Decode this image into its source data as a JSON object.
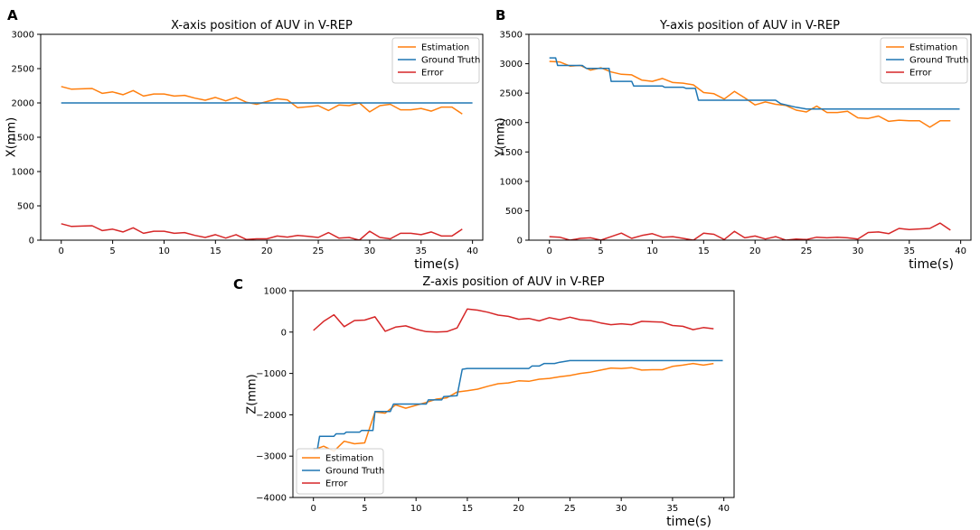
{
  "chart_data": [
    {
      "type": "line",
      "panel_label": "A",
      "title": "X-axis position of AUV in V-REP",
      "xlabel": "time(s)",
      "ylabel": "X(mm)",
      "xlim": [
        -2,
        41
      ],
      "ylim": [
        0,
        3000
      ],
      "xticks": [
        0,
        5,
        10,
        15,
        20,
        25,
        30,
        35,
        40
      ],
      "yticks": [
        0,
        500,
        1000,
        1500,
        2000,
        2500,
        3000
      ],
      "legend_position": "top-right",
      "series": [
        {
          "name": "Estimation",
          "color": "#ff7f0e",
          "x": [
            0,
            1,
            2,
            3,
            4,
            5,
            6,
            7,
            8,
            9,
            10,
            11,
            12,
            13,
            14,
            15,
            16,
            17,
            18,
            19,
            20,
            21,
            22,
            23,
            24,
            25,
            26,
            27,
            28,
            29,
            30,
            31,
            32,
            33,
            34,
            35,
            36,
            37,
            38,
            39
          ],
          "values": [
            2240,
            2200,
            2205,
            2210,
            2140,
            2160,
            2120,
            2180,
            2100,
            2130,
            2130,
            2100,
            2110,
            2070,
            2040,
            2080,
            2030,
            2080,
            2010,
            1980,
            2020,
            2060,
            2045,
            1930,
            1945,
            1960,
            1890,
            1970,
            1960,
            2000,
            1870,
            1960,
            1980,
            1900,
            1900,
            1920,
            1880,
            1940,
            1940,
            1840
          ]
        },
        {
          "name": "Ground Truth",
          "color": "#1f77b4",
          "x": [
            0,
            40
          ],
          "values": [
            2000,
            2000
          ]
        },
        {
          "name": "Error",
          "color": "#d62728",
          "x": [
            0,
            1,
            2,
            3,
            4,
            5,
            6,
            7,
            8,
            9,
            10,
            11,
            12,
            13,
            14,
            15,
            16,
            17,
            18,
            19,
            20,
            21,
            22,
            23,
            24,
            25,
            26,
            27,
            28,
            29,
            30,
            31,
            32,
            33,
            34,
            35,
            36,
            37,
            38,
            39
          ],
          "values": [
            240,
            200,
            205,
            210,
            140,
            160,
            120,
            180,
            100,
            130,
            130,
            100,
            110,
            70,
            40,
            80,
            30,
            80,
            10,
            20,
            20,
            60,
            45,
            70,
            55,
            40,
            110,
            30,
            40,
            0,
            130,
            40,
            20,
            100,
            100,
            80,
            120,
            60,
            60,
            160
          ]
        }
      ]
    },
    {
      "type": "line",
      "panel_label": "B",
      "title": "Y-axis position of AUV in V-REP",
      "xlabel": "time(s)",
      "ylabel": "Y(mm)",
      "xlim": [
        -2,
        41
      ],
      "ylim": [
        0,
        3500
      ],
      "xticks": [
        0,
        5,
        10,
        15,
        20,
        25,
        30,
        35,
        40
      ],
      "yticks": [
        0,
        500,
        1000,
        1500,
        2000,
        2500,
        3000,
        3500
      ],
      "legend_position": "top-right",
      "series": [
        {
          "name": "Estimation",
          "color": "#ff7f0e",
          "x": [
            0,
            1,
            2,
            3,
            4,
            5,
            6,
            7,
            8,
            9,
            10,
            11,
            12,
            13,
            14,
            15,
            16,
            17,
            18,
            19,
            20,
            21,
            22,
            23,
            24,
            25,
            26,
            27,
            28,
            29,
            30,
            31,
            32,
            33,
            34,
            35,
            36,
            37,
            38,
            39
          ],
          "values": [
            3040,
            3030,
            2960,
            2970,
            2890,
            2930,
            2860,
            2820,
            2810,
            2720,
            2700,
            2750,
            2680,
            2670,
            2640,
            2510,
            2490,
            2400,
            2530,
            2420,
            2300,
            2350,
            2310,
            2290,
            2210,
            2180,
            2280,
            2170,
            2170,
            2190,
            2080,
            2070,
            2110,
            2020,
            2040,
            2030,
            2030,
            1920,
            2030,
            2030
          ]
        },
        {
          "name": "Ground Truth",
          "color": "#1f77b4",
          "x": [
            0,
            0.6,
            0.8,
            3.2,
            3.6,
            5.8,
            6.0,
            8.0,
            8.2,
            11.0,
            11.2,
            13.0,
            13.3,
            14.2,
            14.5,
            16.0,
            18.0,
            20.0,
            22.0,
            22.5,
            24.0,
            25.0,
            39.9
          ],
          "values": [
            3100,
            3100,
            2970,
            2970,
            2920,
            2920,
            2700,
            2700,
            2620,
            2620,
            2600,
            2600,
            2580,
            2580,
            2380,
            2380,
            2380,
            2380,
            2380,
            2320,
            2260,
            2230,
            2230
          ]
        },
        {
          "name": "Error",
          "color": "#d62728",
          "x": [
            0,
            1,
            2,
            3,
            4,
            5,
            6,
            7,
            8,
            9,
            10,
            11,
            12,
            13,
            14,
            15,
            16,
            17,
            18,
            19,
            20,
            21,
            22,
            23,
            24,
            25,
            26,
            27,
            28,
            29,
            30,
            31,
            32,
            33,
            34,
            35,
            36,
            37,
            38,
            39
          ],
          "values": [
            60,
            50,
            0,
            30,
            40,
            0,
            60,
            120,
            30,
            80,
            110,
            50,
            60,
            30,
            0,
            120,
            100,
            10,
            150,
            40,
            70,
            20,
            60,
            0,
            20,
            10,
            50,
            40,
            50,
            40,
            20,
            130,
            140,
            110,
            200,
            180,
            190,
            200,
            290,
            170
          ]
        }
      ]
    },
    {
      "type": "line",
      "panel_label": "C",
      "title": "Z-axis position of AUV in V-REP",
      "xlabel": "time(s)",
      "ylabel": "Z(mm)",
      "xlim": [
        -2,
        41
      ],
      "ylim": [
        -4000,
        1000
      ],
      "xticks": [
        0,
        5,
        10,
        15,
        20,
        25,
        30,
        35,
        40
      ],
      "yticks": [
        -4000,
        -3000,
        -2000,
        -1000,
        0,
        1000
      ],
      "legend_position": "bottom-left",
      "series": [
        {
          "name": "Estimation",
          "color": "#ff7f0e",
          "x": [
            0,
            1,
            2,
            3,
            4,
            5,
            6,
            7,
            8,
            9,
            10,
            11,
            12,
            13,
            14,
            15,
            16,
            17,
            18,
            19,
            20,
            21,
            22,
            23,
            24,
            25,
            26,
            27,
            28,
            29,
            30,
            31,
            32,
            33,
            34,
            35,
            36,
            37,
            38,
            39
          ],
          "values": [
            -2850,
            -2760,
            -2880,
            -2640,
            -2700,
            -2680,
            -1930,
            -1960,
            -1760,
            -1840,
            -1770,
            -1700,
            -1620,
            -1590,
            -1450,
            -1420,
            -1380,
            -1310,
            -1250,
            -1230,
            -1180,
            -1190,
            -1140,
            -1120,
            -1080,
            -1050,
            -1000,
            -970,
            -920,
            -870,
            -880,
            -860,
            -920,
            -910,
            -910,
            -830,
            -800,
            -760,
            -800,
            -760
          ]
        },
        {
          "name": "Ground Truth",
          "color": "#1f77b4",
          "x": [
            0,
            0.4,
            0.6,
            2.0,
            2.2,
            3.0,
            3.2,
            4.5,
            4.7,
            5.8,
            6.0,
            7.5,
            7.8,
            11.0,
            11.2,
            12.5,
            12.7,
            14.0,
            14.5,
            15.0,
            19.0,
            21.0,
            21.3,
            22.0,
            22.5,
            23.5,
            24.0,
            25.0,
            39.9
          ],
          "values": [
            -2820,
            -2820,
            -2520,
            -2520,
            -2460,
            -2460,
            -2420,
            -2420,
            -2380,
            -2380,
            -1920,
            -1920,
            -1740,
            -1740,
            -1640,
            -1640,
            -1560,
            -1540,
            -900,
            -880,
            -880,
            -880,
            -820,
            -820,
            -760,
            -760,
            -730,
            -690,
            -690
          ]
        },
        {
          "name": "Error",
          "color": "#d62728",
          "x": [
            0,
            1,
            2,
            3,
            4,
            5,
            6,
            7,
            8,
            9,
            10,
            11,
            12,
            13,
            14,
            15,
            16,
            17,
            18,
            19,
            20,
            21,
            22,
            23,
            24,
            25,
            26,
            27,
            28,
            29,
            30,
            31,
            32,
            33,
            34,
            35,
            36,
            37,
            38,
            39
          ],
          "values": [
            40,
            260,
            420,
            130,
            280,
            290,
            370,
            20,
            120,
            150,
            70,
            10,
            0,
            10,
            100,
            560,
            530,
            480,
            410,
            380,
            310,
            330,
            270,
            350,
            300,
            360,
            300,
            280,
            220,
            180,
            200,
            180,
            260,
            250,
            240,
            160,
            140,
            60,
            110,
            80
          ]
        }
      ]
    }
  ]
}
